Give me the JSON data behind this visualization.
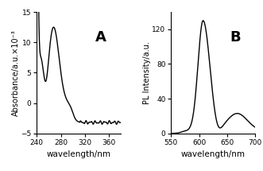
{
  "panel_A": {
    "label": "A",
    "xlabel": "wavelength/nm",
    "ylabel": "Absorbance/a.u.×10⁻³",
    "xlim": [
      240,
      380
    ],
    "ylim": [
      -5,
      15
    ],
    "yticks": [
      -5,
      0,
      5,
      10,
      15
    ],
    "xticks": [
      240,
      280,
      320,
      360
    ],
    "line_color": "black",
    "line_width": 1.0
  },
  "panel_B": {
    "label": "B",
    "xlabel": "wavelength/nm",
    "ylabel": "PL Intensity/a.u.",
    "xlim": [
      550,
      700
    ],
    "ylim": [
      0,
      140
    ],
    "yticks": [
      0,
      40,
      80,
      120
    ],
    "xticks": [
      550,
      600,
      650,
      700
    ],
    "line_color": "black",
    "line_width": 1.0
  },
  "background_color": "white",
  "label_fontsize": 7.5,
  "tick_fontsize": 6.5,
  "panel_label_fontsize": 13
}
